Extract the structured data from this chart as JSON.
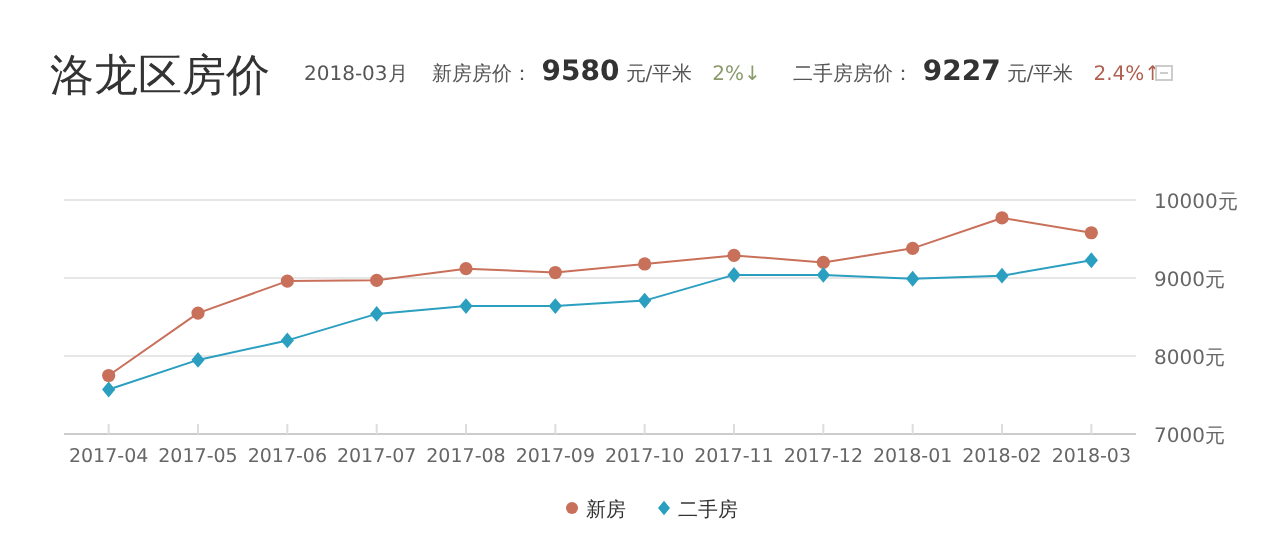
{
  "chart_data": {
    "type": "line",
    "title": "洛龙区房价",
    "annotations": [
      "2018-03月",
      "新房房价：",
      "9580",
      "元/平米",
      "2%↓",
      "二手房房价：",
      "9227",
      "元/平米",
      "2.4%↑"
    ],
    "categories": [
      "2017-04",
      "2017-05",
      "2017-06",
      "2017-07",
      "2017-08",
      "2017-09",
      "2017-10",
      "2017-11",
      "2017-12",
      "2018-01",
      "2018-02",
      "2018-03"
    ],
    "series": [
      {
        "name": "新房",
        "color": "#c9705a",
        "marker": "circle",
        "values": [
          7750,
          8550,
          8960,
          8970,
          9120,
          9070,
          9180,
          9290,
          9200,
          9380,
          9770,
          9580
        ]
      },
      {
        "name": "二手房",
        "color": "#2b9fc0",
        "marker": "diamond",
        "values": [
          7570,
          7950,
          8200,
          8540,
          8640,
          8640,
          8710,
          9040,
          9040,
          8990,
          9030,
          9227
        ]
      }
    ],
    "ylim": [
      7000,
      10000
    ],
    "yticks": [
      {
        "value": 7000,
        "label": "7000元"
      },
      {
        "value": 8000,
        "label": "8000元"
      },
      {
        "value": 9000,
        "label": "9000元"
      },
      {
        "value": 10000,
        "label": "10000元"
      }
    ],
    "grid": "y",
    "legend": "bottom",
    "line_style": "solid"
  }
}
